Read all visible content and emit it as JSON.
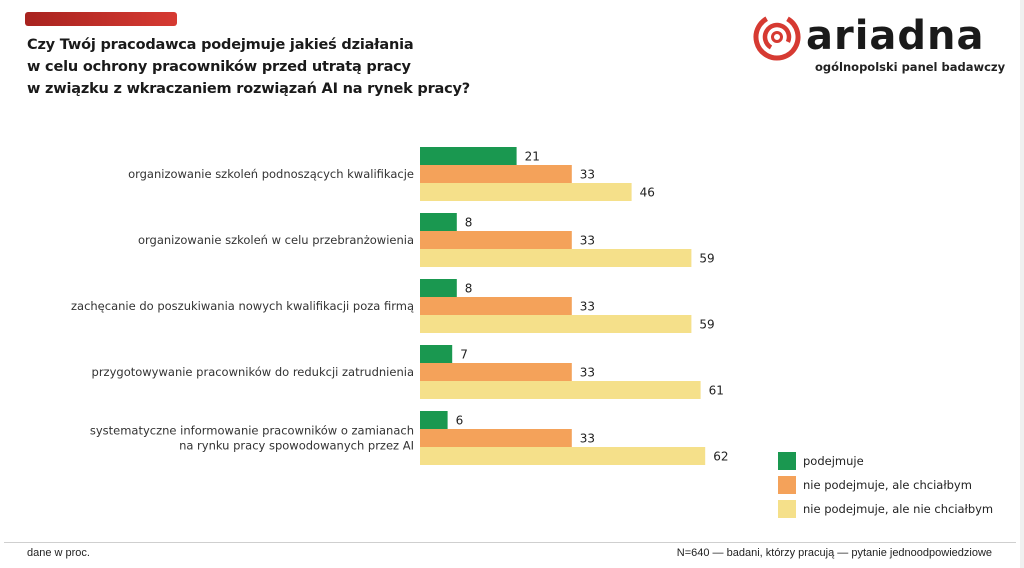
{
  "header": {
    "title_lines": [
      "Czy Twój pracodawca podejmuje jakieś działania",
      "w celu ochrony pracowników przed utratą pracy",
      "w związku z wkraczaniem rozwiązań AI na rynek pracy?"
    ],
    "accent_color": "#c0302a"
  },
  "logo": {
    "icon": "ariadna-spiral-icon",
    "wordmark": "ariadna",
    "tagline": "ogólnopolski panel badawczy",
    "color": "#d63a32"
  },
  "chart_data": {
    "type": "bar",
    "orientation": "horizontal",
    "title": "Czy Twój pracodawca podejmuje jakieś działania w celu ochrony pracowników przed utratą pracy w związku z wkraczaniem rozwiązań AI na rynek pracy?",
    "xlabel": "",
    "ylabel": "",
    "unit": "%",
    "xlim": [
      0,
      70
    ],
    "grid": false,
    "legend_position": "bottom-right",
    "categories": [
      [
        "organizowanie szkoleń podnoszących kwalifikacje"
      ],
      [
        "organizowanie szkoleń w celu przebranżowienia"
      ],
      [
        "zachęcanie do poszukiwania nowych kwalifikacji poza firmą"
      ],
      [
        "przygotowywanie pracowników do redukcji zatrudnienia"
      ],
      [
        "systematyczne informowanie pracowników o zamianach",
        "na rynku pracy spowodowanych przez AI"
      ]
    ],
    "series": [
      {
        "name": "podejmuje",
        "color": "#1a9850",
        "values": [
          21,
          8,
          8,
          7,
          6
        ]
      },
      {
        "name": "nie podejmuje, ale chciałbym",
        "color": "#f4a25a",
        "values": [
          33,
          33,
          33,
          33,
          33
        ]
      },
      {
        "name": "nie podejmuje, ale nie chciałbym",
        "color": "#f5e08a",
        "values": [
          46,
          59,
          59,
          61,
          62
        ]
      }
    ]
  },
  "footer": {
    "left": "dane w proc.",
    "right": "N=640 — badani, którzy pracują — pytanie jednoodpowiedziowe"
  }
}
